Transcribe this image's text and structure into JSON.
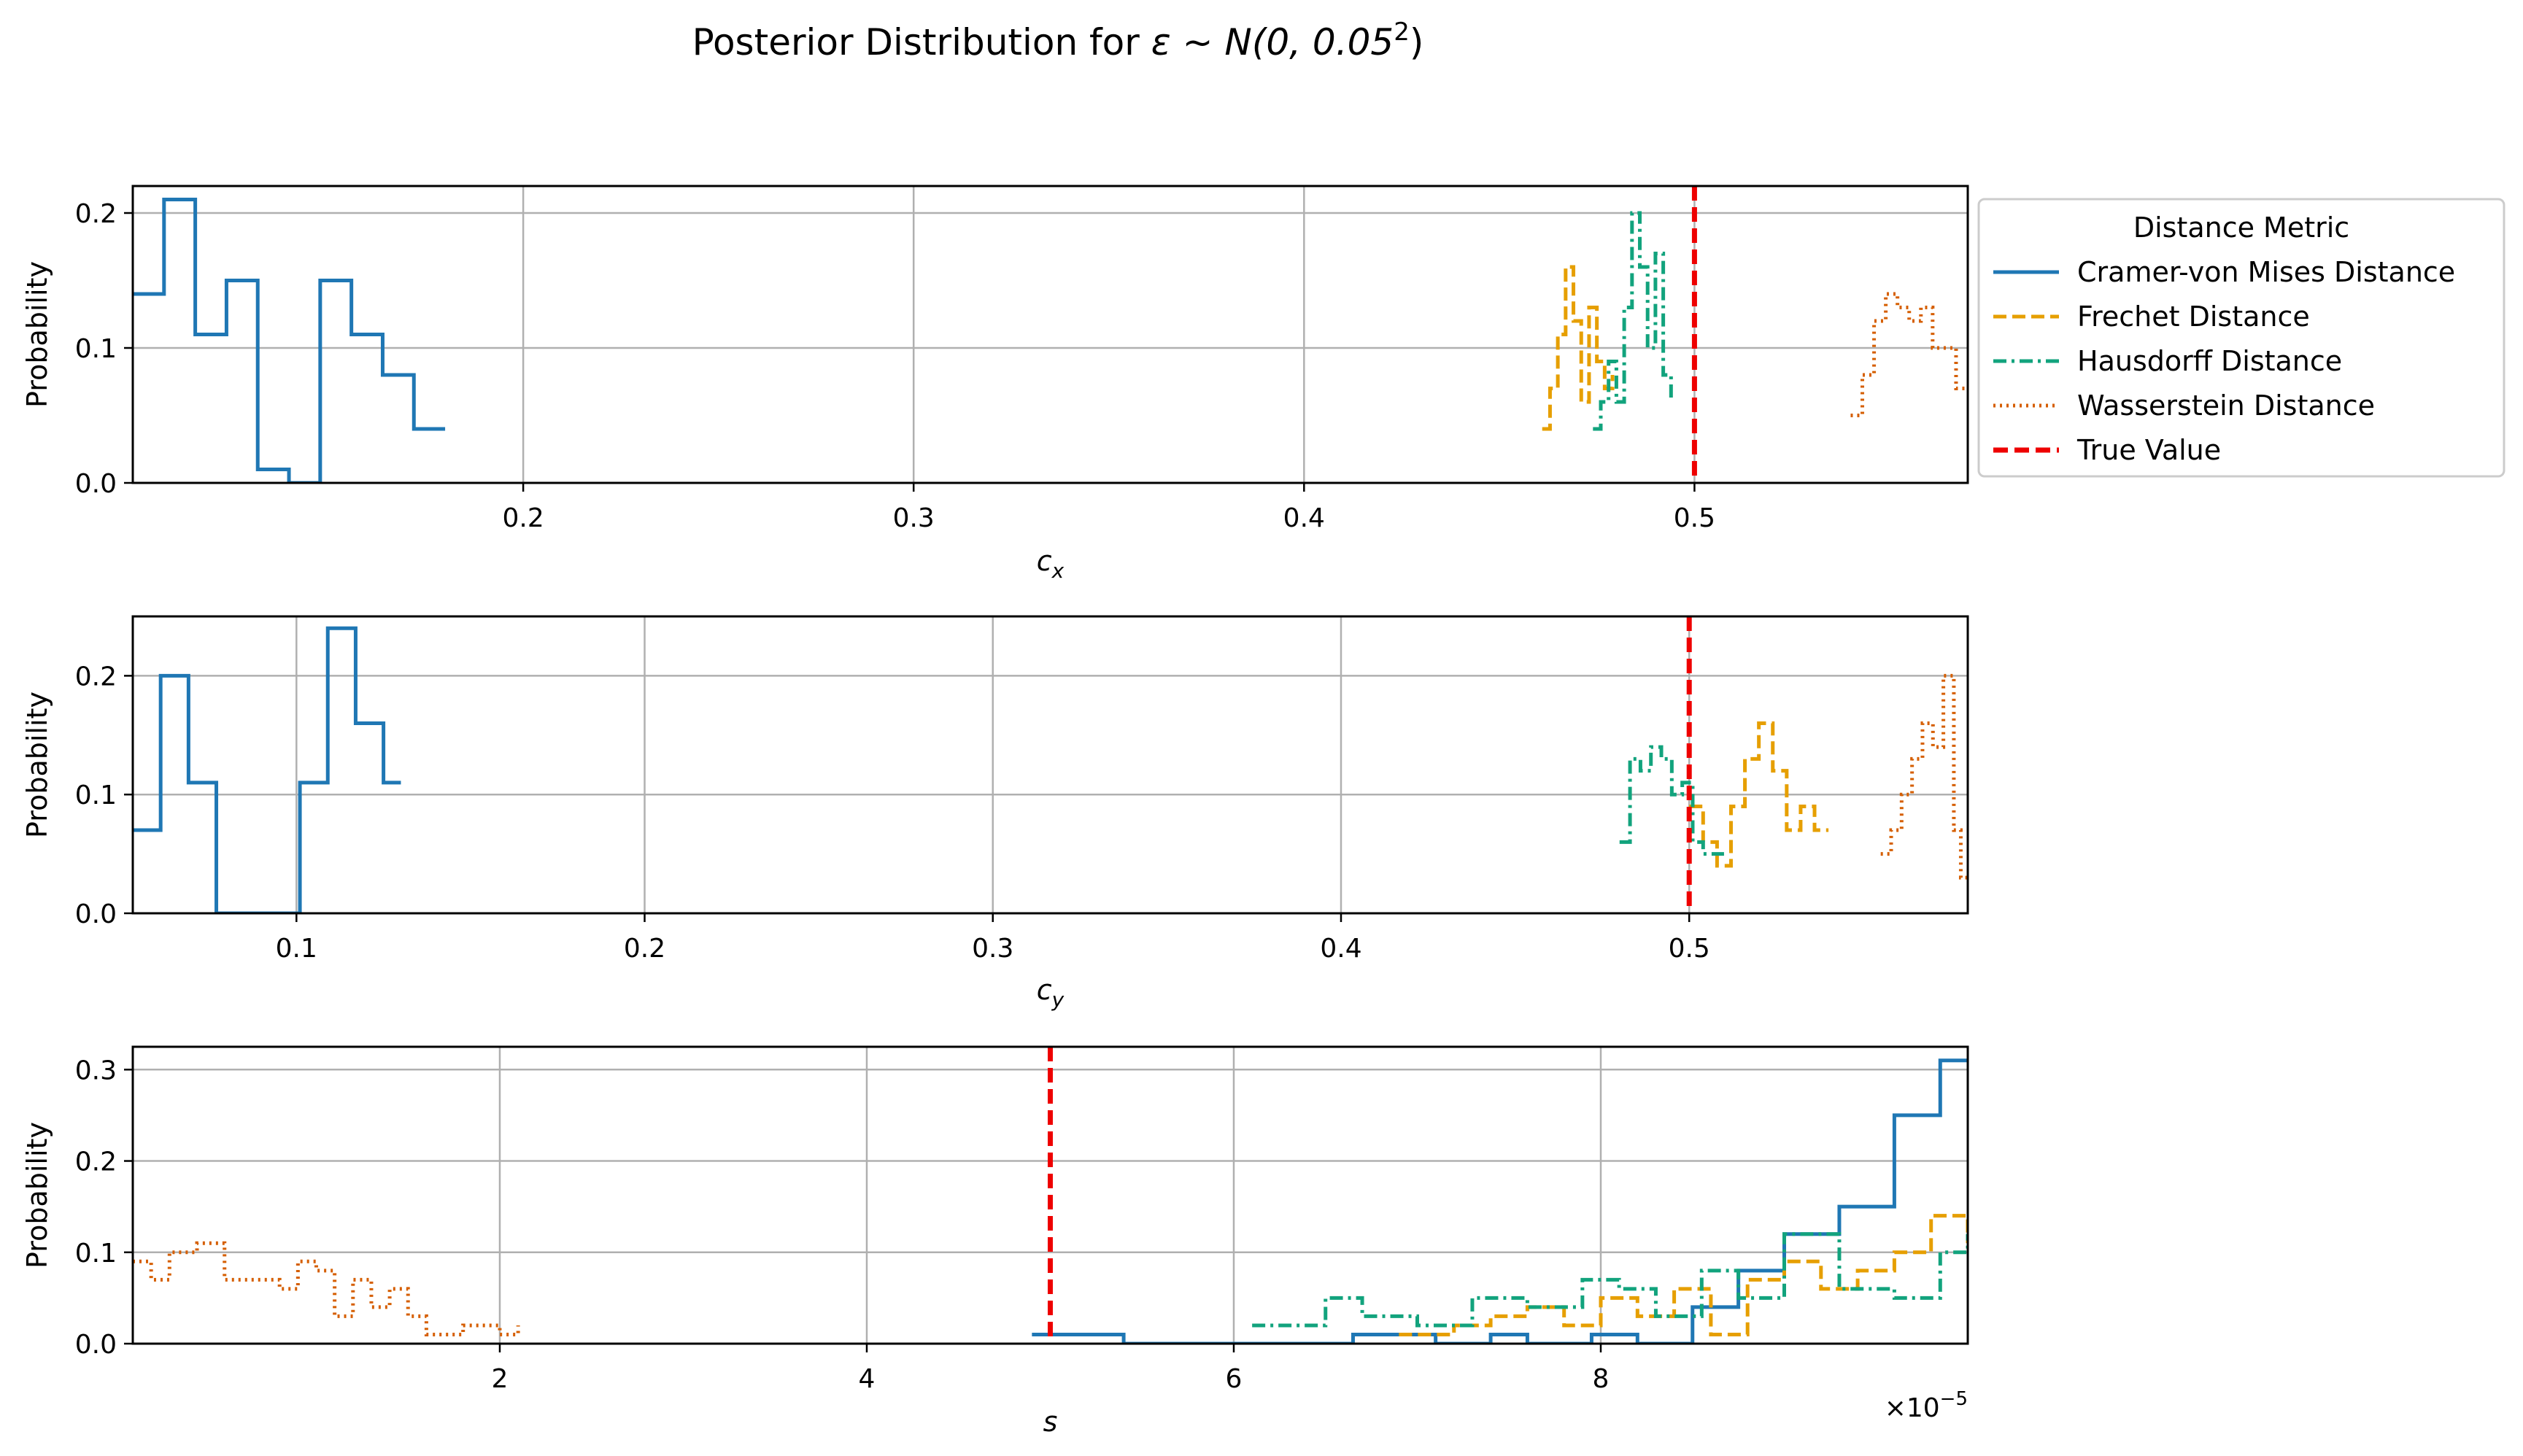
{
  "figure": {
    "title": "Posterior Distribution for ε ~ N(0, 0.05²)",
    "title_parts": {
      "main": "Posterior Distribution for ",
      "symbol": "ε ~ N(0, 0.05",
      "sup": "2",
      "close": ")"
    }
  },
  "colors": {
    "cvm": "#1f77b4",
    "frechet": "#e69f00",
    "hausdorff": "#12a37d",
    "wasserstein": "#d55e00",
    "true": "#ee0000",
    "grid": "#b0b0b0",
    "axis": "#000000"
  },
  "legend": {
    "title": "Distance Metric",
    "placement": "right of top subplot",
    "entries": [
      {
        "label": "Cramer-von Mises Distance",
        "key": "cvm",
        "style": "solid"
      },
      {
        "label": "Frechet Distance",
        "key": "frechet",
        "style": "dashed"
      },
      {
        "label": "Hausdorff Distance",
        "key": "hausdorff",
        "style": "dashdot"
      },
      {
        "label": "Wasserstein Distance",
        "key": "wasserstein",
        "style": "dotted"
      },
      {
        "label": "True Value",
        "key": "true",
        "style": "dashed-thick"
      }
    ]
  },
  "chart_data": [
    {
      "type": "line",
      "drawstyle": "steps",
      "xlabel": "c",
      "xlabel_sub": "x",
      "ylabel": "Probability",
      "xlim": [
        0.1,
        0.57
      ],
      "ylim": [
        0,
        0.22
      ],
      "xticks": [
        0.2,
        0.3,
        0.4,
        0.5
      ],
      "xtick_labels": [
        "0.2",
        "0.3",
        "0.4",
        "0.5"
      ],
      "yticks": [
        0.0,
        0.1,
        0.2
      ],
      "ytick_labels": [
        "0.0",
        "0.1",
        "0.2"
      ],
      "grid": true,
      "true_value": 0.5,
      "series": [
        {
          "name": "Cramer-von Mises Distance",
          "key": "cvm",
          "style": "solid",
          "x": [
            0.1,
            0.108,
            0.116,
            0.124,
            0.132,
            0.14,
            0.148,
            0.156,
            0.164,
            0.172,
            0.18
          ],
          "y": [
            0.14,
            0.21,
            0.11,
            0.15,
            0.01,
            0.0,
            0.15,
            0.11,
            0.08,
            0.04,
            0.04
          ]
        },
        {
          "name": "Frechet Distance",
          "key": "frechet",
          "style": "dashed",
          "x": [
            0.461,
            0.463,
            0.465,
            0.467,
            0.469,
            0.471,
            0.473,
            0.475,
            0.477,
            0.479
          ],
          "y": [
            0.04,
            0.07,
            0.11,
            0.16,
            0.12,
            0.06,
            0.13,
            0.09,
            0.07,
            0.08
          ]
        },
        {
          "name": "Hausdorff Distance",
          "key": "hausdorff",
          "style": "dashdot",
          "x": [
            0.474,
            0.476,
            0.478,
            0.48,
            0.482,
            0.484,
            0.486,
            0.488,
            0.49,
            0.492,
            0.494
          ],
          "y": [
            0.04,
            0.06,
            0.09,
            0.06,
            0.13,
            0.2,
            0.16,
            0.1,
            0.17,
            0.08,
            0.06
          ]
        },
        {
          "name": "Wasserstein Distance",
          "key": "wasserstein",
          "style": "dotted",
          "x": [
            0.54,
            0.543,
            0.546,
            0.549,
            0.552,
            0.555,
            0.558,
            0.561,
            0.564,
            0.567,
            0.57
          ],
          "y": [
            0.05,
            0.08,
            0.12,
            0.14,
            0.13,
            0.12,
            0.13,
            0.1,
            0.1,
            0.07,
            0.07
          ]
        }
      ]
    },
    {
      "type": "line",
      "drawstyle": "steps",
      "xlabel": "c",
      "xlabel_sub": "y",
      "ylabel": "Probability",
      "xlim": [
        0.053,
        0.58
      ],
      "ylim": [
        0,
        0.25
      ],
      "xticks": [
        0.1,
        0.2,
        0.3,
        0.4,
        0.5
      ],
      "xtick_labels": [
        "0.1",
        "0.2",
        "0.3",
        "0.4",
        "0.5"
      ],
      "yticks": [
        0.0,
        0.1,
        0.2
      ],
      "ytick_labels": [
        "0.0",
        "0.1",
        "0.2"
      ],
      "grid": true,
      "true_value": 0.5,
      "series": [
        {
          "name": "Cramer-von Mises Distance",
          "key": "cvm",
          "style": "solid",
          "x": [
            0.053,
            0.061,
            0.069,
            0.077,
            0.085,
            0.093,
            0.101,
            0.109,
            0.117,
            0.125,
            0.13
          ],
          "y": [
            0.07,
            0.2,
            0.11,
            0.0,
            0.0,
            0.0,
            0.11,
            0.24,
            0.16,
            0.11,
            0.11
          ]
        },
        {
          "name": "Frechet Distance",
          "key": "frechet",
          "style": "dashed",
          "x": [
            0.5,
            0.504,
            0.508,
            0.512,
            0.516,
            0.52,
            0.524,
            0.528,
            0.532,
            0.536,
            0.54
          ],
          "y": [
            0.09,
            0.06,
            0.04,
            0.09,
            0.13,
            0.16,
            0.12,
            0.07,
            0.09,
            0.07,
            0.07
          ]
        },
        {
          "name": "Hausdorff Distance",
          "key": "hausdorff",
          "style": "dashdot",
          "x": [
            0.48,
            0.483,
            0.486,
            0.489,
            0.492,
            0.495,
            0.498,
            0.501,
            0.504,
            0.507,
            0.51
          ],
          "y": [
            0.06,
            0.13,
            0.12,
            0.14,
            0.13,
            0.1,
            0.11,
            0.06,
            0.05,
            0.05,
            0.05
          ]
        },
        {
          "name": "Wasserstein Distance",
          "key": "wasserstein",
          "style": "dotted",
          "x": [
            0.555,
            0.558,
            0.561,
            0.564,
            0.567,
            0.57,
            0.573,
            0.576,
            0.578,
            0.58
          ],
          "y": [
            0.05,
            0.07,
            0.1,
            0.13,
            0.16,
            0.14,
            0.2,
            0.07,
            0.03,
            0.03
          ]
        }
      ]
    },
    {
      "type": "line",
      "drawstyle": "steps",
      "xlabel": "s",
      "ylabel": "Probability",
      "xlim": [
        0.0,
        10.0
      ],
      "ylim": [
        0,
        0.325
      ],
      "x_scale_note": "×10",
      "x_scale_exp": "−5",
      "xticks": [
        2,
        4,
        6,
        8
      ],
      "xtick_labels": [
        "2",
        "4",
        "6",
        "8"
      ],
      "yticks": [
        0.0,
        0.1,
        0.2,
        0.3
      ],
      "ytick_labels": [
        "0.0",
        "0.1",
        "0.2",
        "0.3"
      ],
      "grid": true,
      "true_value": 5.0,
      "series": [
        {
          "name": "Cramer-von Mises Distance",
          "key": "cvm",
          "style": "solid",
          "x": [
            4.9,
            5.4,
            6.65,
            7.1,
            7.4,
            7.6,
            7.95,
            8.2,
            8.5,
            8.75,
            9.0,
            9.3,
            9.6,
            9.85,
            10.0
          ],
          "y": [
            0.01,
            0.0,
            0.01,
            0.0,
            0.01,
            0.0,
            0.01,
            0.0,
            0.04,
            0.08,
            0.12,
            0.15,
            0.25,
            0.31,
            0.31
          ]
        },
        {
          "name": "Frechet Distance",
          "key": "frechet",
          "style": "dashed",
          "x": [
            6.9,
            7.2,
            7.4,
            7.6,
            7.8,
            8.0,
            8.2,
            8.4,
            8.6,
            8.8,
            9.0,
            9.2,
            9.4,
            9.6,
            9.8,
            10.0
          ],
          "y": [
            0.01,
            0.02,
            0.03,
            0.04,
            0.02,
            0.05,
            0.03,
            0.06,
            0.01,
            0.07,
            0.09,
            0.06,
            0.08,
            0.1,
            0.14,
            0.11
          ]
        },
        {
          "name": "Hausdorff Distance",
          "key": "hausdorff",
          "style": "dashdot",
          "x": [
            6.1,
            6.5,
            6.7,
            7.0,
            7.3,
            7.6,
            7.9,
            8.1,
            8.3,
            8.55,
            8.75,
            9.0,
            9.3,
            9.6,
            9.85,
            10.0
          ],
          "y": [
            0.02,
            0.05,
            0.03,
            0.02,
            0.05,
            0.04,
            0.07,
            0.06,
            0.03,
            0.08,
            0.05,
            0.12,
            0.06,
            0.05,
            0.1,
            0.12
          ]
        },
        {
          "name": "Wasserstein Distance",
          "key": "wasserstein",
          "style": "dotted",
          "x": [
            0.0,
            0.1,
            0.2,
            0.35,
            0.5,
            0.6,
            0.8,
            0.9,
            1.0,
            1.1,
            1.2,
            1.3,
            1.4,
            1.5,
            1.6,
            1.8,
            2.0,
            2.1
          ],
          "y": [
            0.09,
            0.07,
            0.1,
            0.11,
            0.07,
            0.07,
            0.06,
            0.09,
            0.08,
            0.03,
            0.07,
            0.04,
            0.06,
            0.03,
            0.01,
            0.02,
            0.01,
            0.02
          ]
        }
      ]
    }
  ]
}
